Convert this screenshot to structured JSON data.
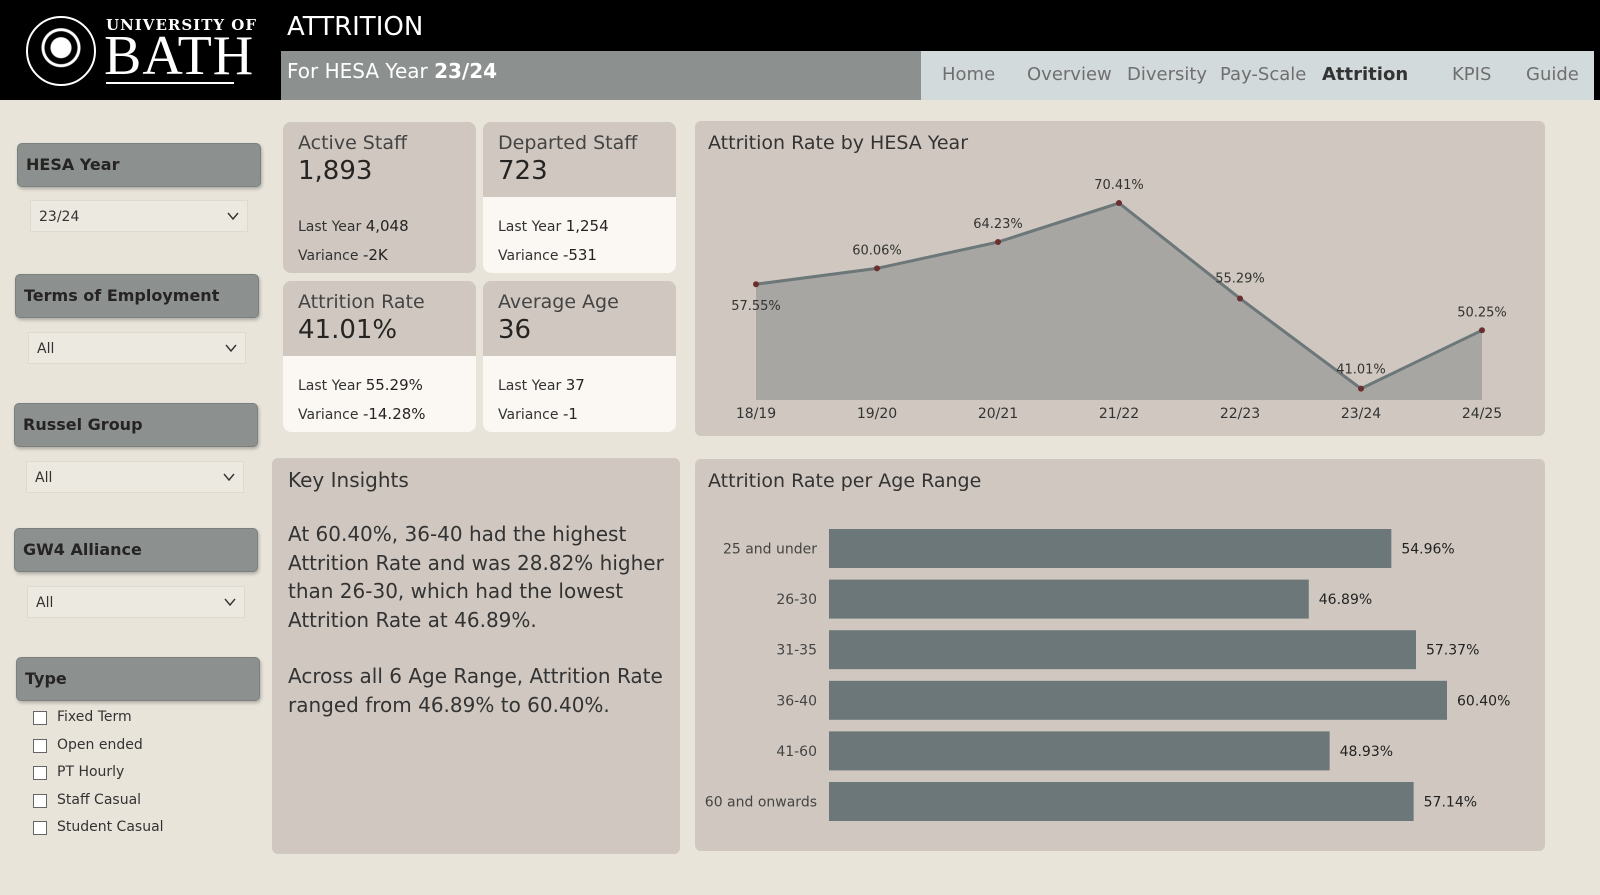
{
  "header": {
    "logo": {
      "line1": "UNIVERSITY OF",
      "line2": "BATH"
    },
    "title": "ATTRITION",
    "subtitle_prefix": "For HESA Year ",
    "subtitle_year": "23/24",
    "nav": [
      {
        "label": "Home",
        "active": false
      },
      {
        "label": "Overview",
        "active": false
      },
      {
        "label": "Diversity",
        "active": false
      },
      {
        "label": "Pay-Scale",
        "active": false
      },
      {
        "label": "Attrition",
        "active": true
      },
      {
        "label": "KPIS",
        "active": false
      },
      {
        "label": "Guide",
        "active": false
      }
    ]
  },
  "filters": {
    "hesa_year": {
      "label": "HESA Year",
      "value": "23/24"
    },
    "terms": {
      "label": "Terms of Employment",
      "value": "All"
    },
    "russel": {
      "label": "Russel Group",
      "value": "All"
    },
    "gw4": {
      "label": "GW4 Alliance",
      "value": "All"
    },
    "type": {
      "label": "Type",
      "options": [
        "Fixed Term",
        "Open ended",
        "PT Hourly",
        "Staff Casual",
        "Student Casual"
      ]
    }
  },
  "kpis": {
    "active": {
      "title": "Active Staff",
      "value": "1,893",
      "ly_label": "Last Year ",
      "ly_value": "4,048",
      "var_label": "Variance ",
      "var_value": "-2K"
    },
    "departed": {
      "title": "Departed Staff",
      "value": "723",
      "ly_label": "Last Year ",
      "ly_value": "1,254",
      "var_label": "Variance ",
      "var_value": "-531"
    },
    "attrition": {
      "title": "Attrition Rate",
      "value": "41.01%",
      "ly_label": "Last Year ",
      "ly_value": "55.29%",
      "var_label": "Variance ",
      "var_value": "-14.28%"
    },
    "age": {
      "title": "Average Age",
      "value": "36",
      "ly_label": "Last Year ",
      "ly_value": "37",
      "var_label": "Variance ",
      "var_value": "-1"
    }
  },
  "insights": {
    "title": "Key Insights",
    "para1": "At 60.40%, 36-40 had the highest Attrition Rate and was 28.82% higher than 26-30, which had the lowest Attrition Rate at 46.89%.",
    "para2": "Across all 6 Age Range, Attrition Rate ranged from 46.89% to 60.40%."
  },
  "chart_data": [
    {
      "type": "area",
      "title": "Attrition Rate by HESA Year",
      "categories": [
        "18/19",
        "19/20",
        "20/21",
        "21/22",
        "22/23",
        "23/24",
        "24/25"
      ],
      "values": [
        57.55,
        60.06,
        64.23,
        70.41,
        55.29,
        41.01,
        50.25
      ],
      "labels": [
        "57.55%",
        "60.06%",
        "64.23%",
        "70.41%",
        "55.29%",
        "41.01%",
        "50.25%"
      ],
      "ylim": [
        40,
        72
      ],
      "colors": {
        "line": "#6b7778",
        "fill": "#a8a6a2",
        "marker": "#6b2f2f"
      }
    },
    {
      "type": "bar",
      "orientation": "horizontal",
      "title": "Attrition Rate per Age Range",
      "categories": [
        "25 and under",
        "26-30",
        "31-35",
        "36-40",
        "41-60",
        "60 and onwards"
      ],
      "values": [
        54.96,
        46.89,
        57.37,
        60.4,
        48.93,
        57.14
      ],
      "labels": [
        "54.96%",
        "46.89%",
        "57.37%",
        "60.40%",
        "48.93%",
        "57.14%"
      ],
      "colors": {
        "bar": "#6b7778"
      }
    }
  ]
}
